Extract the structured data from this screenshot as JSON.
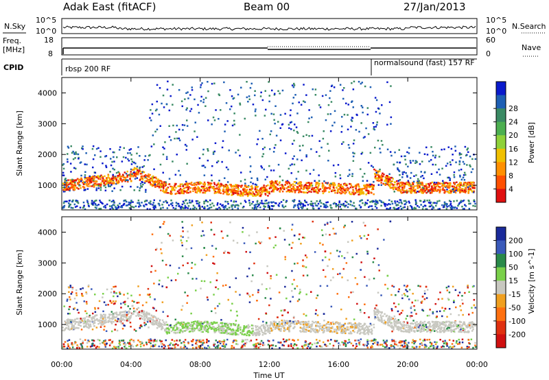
{
  "header": {
    "station": "Adak East (fitACF)",
    "beam": "Beam 00",
    "date": "27/Jan/2013"
  },
  "strip_labels": {
    "nsky": "N.Sky",
    "nsky_tick_top": "10^5",
    "nsky_tick_bottom": "10^0",
    "nsearch": "N.Search",
    "nsearch_tick_top": "10^5",
    "nsearch_tick_bottom": "10^0",
    "freq": "Freq.",
    "freq_unit": "[MHz]",
    "freq_tick_top": "18",
    "freq_tick_bottom": "8",
    "nave": "Nave",
    "nave_tick_top": "60",
    "nave_tick_bottom": "0",
    "cpid": "CPID",
    "cpid_mode_1": "rbsp 200 RF",
    "cpid_mode_2": "normalsound (fast) 157 RF"
  },
  "chart_data": [
    {
      "type": "heatmap",
      "name": "power",
      "ylabel": "Slant Range [km]",
      "ylim": [
        200,
        4500
      ],
      "yticks": [
        "1000",
        "2000",
        "3000",
        "4000"
      ],
      "xlim_hours": [
        0,
        24
      ],
      "xticks": [
        "00:00",
        "04:00",
        "08:00",
        "12:00",
        "16:00",
        "20:00",
        "00:00"
      ],
      "colorbar_label": "Power [dB]",
      "colorbar_ticks": [
        "4",
        "8",
        "12",
        "16",
        "20",
        "24",
        "28"
      ],
      "colorbar_colors": [
        "#0a1acc",
        "#1e5fb4",
        "#3a8a64",
        "#4caf50",
        "#8fd13a",
        "#f0c000",
        "#ff9000",
        "#ff5000",
        "#e01010"
      ]
    },
    {
      "type": "heatmap",
      "name": "velocity",
      "xlabel": "Time UT",
      "ylabel": "Slant Range [km]",
      "ylim": [
        200,
        4500
      ],
      "yticks": [
        "1000",
        "2000",
        "3000",
        "4000"
      ],
      "xlim_hours": [
        0,
        24
      ],
      "xticks": [
        "00:00",
        "04:00",
        "08:00",
        "12:00",
        "16:00",
        "20:00",
        "00:00"
      ],
      "colorbar_label": "Velocity [m s^-1]",
      "colorbar_ticks": [
        "200",
        "100",
        "50",
        "15",
        "-15",
        "-50",
        "-100",
        "-200"
      ],
      "colorbar_colors": [
        "#1a2a9a",
        "#3a5aba",
        "#2a8a4a",
        "#7ad04a",
        "#c8c8c0",
        "#f0a020",
        "#ff7010",
        "#e03010",
        "#d01010"
      ]
    }
  ]
}
